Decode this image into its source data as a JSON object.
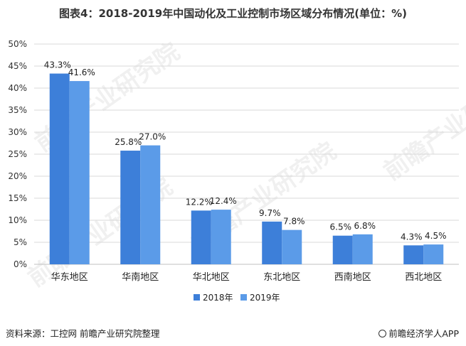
{
  "title": "图表4：2018-2019年中国动化及工业控制市场区域分布情况(单位：%)",
  "source": "资料来源：工控网  前瞻产业研究院整理",
  "brand": "前瞻经济学人APP",
  "watermark": "前瞻产业研究院",
  "colors": {
    "s2018": "#3d7fd9",
    "s2019": "#5b9be8",
    "grid": "#d9d9d9",
    "axis": "#bfbfbf"
  },
  "chart_data": {
    "type": "bar",
    "categories": [
      "华东地区",
      "华南地区",
      "华北地区",
      "东北地区",
      "西南地区",
      "西北地区"
    ],
    "series": [
      {
        "name": "2018年",
        "values": [
          43.3,
          25.8,
          12.2,
          9.7,
          6.5,
          4.3
        ],
        "labels": [
          "43.3%",
          "25.8%",
          "12.2%",
          "9.7%",
          "6.5%",
          "4.3%"
        ]
      },
      {
        "name": "2019年",
        "values": [
          41.6,
          27.0,
          12.4,
          7.8,
          6.8,
          4.5
        ],
        "labels": [
          "41.6%",
          "27.0%",
          "12.4%",
          "7.8%",
          "6.8%",
          "4.5%"
        ]
      }
    ],
    "ylim": [
      0,
      50
    ],
    "yticks": [
      "0%",
      "5%",
      "10%",
      "15%",
      "20%",
      "25%",
      "30%",
      "35%",
      "40%",
      "45%",
      "50%"
    ],
    "grid": true,
    "legend_position": "bottom"
  }
}
